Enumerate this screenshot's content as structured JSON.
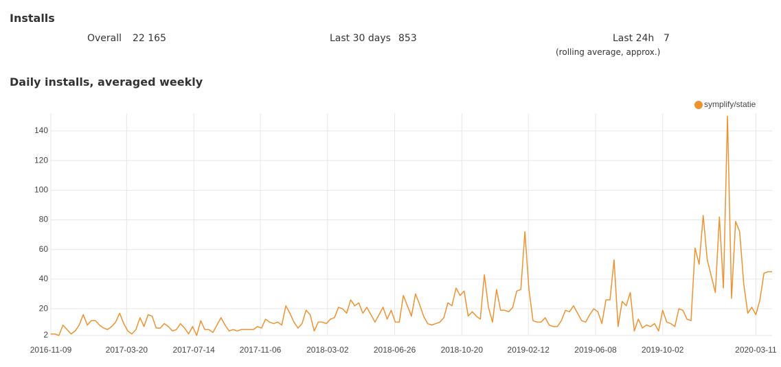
{
  "installs": {
    "title": "Installs",
    "stats": [
      {
        "label": "Overall",
        "value": "22 165"
      },
      {
        "label": "Last 30 days",
        "value": "853"
      },
      {
        "label": "Last 24h",
        "value": "7"
      }
    ],
    "note": "(rolling average, approx.)"
  },
  "chart_data": {
    "type": "line",
    "title": "Daily installs, averaged weekly",
    "x": [
      "2016-11-09",
      "2016-11-16",
      "2016-11-23",
      "2016-11-30",
      "2016-12-07",
      "2016-12-14",
      "2016-12-21",
      "2016-12-28",
      "2017-01-04",
      "2017-01-11",
      "2017-01-18",
      "2017-01-25",
      "2017-02-01",
      "2017-02-08",
      "2017-02-15",
      "2017-02-22",
      "2017-03-01",
      "2017-03-08",
      "2017-03-15",
      "2017-03-22",
      "2017-03-29",
      "2017-04-05",
      "2017-04-12",
      "2017-04-19",
      "2017-04-26",
      "2017-05-03",
      "2017-05-10",
      "2017-05-17",
      "2017-05-24",
      "2017-05-31",
      "2017-06-07",
      "2017-06-14",
      "2017-06-21",
      "2017-06-28",
      "2017-07-05",
      "2017-07-12",
      "2017-07-19",
      "2017-07-26",
      "2017-08-02",
      "2017-08-09",
      "2017-08-16",
      "2017-08-23",
      "2017-08-30",
      "2017-09-06",
      "2017-09-13",
      "2017-09-20",
      "2017-09-27",
      "2017-10-04",
      "2017-10-11",
      "2017-10-18",
      "2017-10-25",
      "2017-11-01",
      "2017-11-08",
      "2017-11-15",
      "2017-11-22",
      "2017-11-29",
      "2017-12-06",
      "2017-12-13",
      "2017-12-20",
      "2017-12-27",
      "2018-01-03",
      "2018-01-10",
      "2018-01-17",
      "2018-01-24",
      "2018-01-31",
      "2018-02-07",
      "2018-02-14",
      "2018-02-21",
      "2018-02-28",
      "2018-03-07",
      "2018-03-14",
      "2018-03-21",
      "2018-03-28",
      "2018-04-04",
      "2018-04-11",
      "2018-04-18",
      "2018-04-25",
      "2018-05-02",
      "2018-05-09",
      "2018-05-16",
      "2018-05-23",
      "2018-05-30",
      "2018-06-06",
      "2018-06-13",
      "2018-06-20",
      "2018-06-27",
      "2018-07-04",
      "2018-07-11",
      "2018-07-18",
      "2018-07-25",
      "2018-08-01",
      "2018-08-08",
      "2018-08-15",
      "2018-08-22",
      "2018-08-29",
      "2018-09-05",
      "2018-09-12",
      "2018-09-19",
      "2018-09-26",
      "2018-10-03",
      "2018-10-10",
      "2018-10-17",
      "2018-10-24",
      "2018-10-31",
      "2018-11-07",
      "2018-11-14",
      "2018-11-21",
      "2018-11-28",
      "2018-12-05",
      "2018-12-12",
      "2018-12-19",
      "2018-12-26",
      "2019-01-02",
      "2019-01-09",
      "2019-01-16",
      "2019-01-23",
      "2019-01-30",
      "2019-02-06",
      "2019-02-13",
      "2019-02-20",
      "2019-02-27",
      "2019-03-06",
      "2019-03-13",
      "2019-03-20",
      "2019-03-27",
      "2019-04-03",
      "2019-04-10",
      "2019-04-17",
      "2019-04-24",
      "2019-05-01",
      "2019-05-08",
      "2019-05-15",
      "2019-05-22",
      "2019-05-29",
      "2019-06-05",
      "2019-06-12",
      "2019-06-19",
      "2019-06-26",
      "2019-07-03",
      "2019-07-10",
      "2019-07-17",
      "2019-07-24",
      "2019-07-31",
      "2019-08-07",
      "2019-08-14",
      "2019-08-21",
      "2019-08-28",
      "2019-09-04",
      "2019-09-11",
      "2019-09-18",
      "2019-09-25",
      "2019-10-02",
      "2019-10-09",
      "2019-10-16",
      "2019-10-23",
      "2019-10-30",
      "2019-11-06",
      "2019-11-13",
      "2019-11-20",
      "2019-11-27",
      "2019-12-04",
      "2019-12-11",
      "2019-12-18",
      "2019-12-25",
      "2020-01-01",
      "2020-01-08",
      "2020-01-15",
      "2020-01-22",
      "2020-01-29",
      "2020-02-05",
      "2020-02-12",
      "2020-02-19",
      "2020-02-26",
      "2020-03-04",
      "2020-03-11",
      "2020-03-18",
      "2020-03-25",
      "2020-04-01",
      "2020-04-08"
    ],
    "series": [
      {
        "name": "symplify/statie",
        "color": "#f0912f",
        "values": [
          3,
          3,
          2,
          9,
          6,
          3,
          5,
          9,
          16,
          9,
          12,
          12,
          9,
          7,
          6,
          8,
          11,
          17,
          10,
          5,
          3,
          6,
          14,
          8,
          16,
          15,
          7,
          7,
          10,
          8,
          5,
          6,
          10,
          7,
          3,
          8,
          2,
          12,
          6,
          6,
          4,
          9,
          14,
          9,
          5,
          6,
          5,
          6,
          6,
          6,
          6,
          8,
          7,
          13,
          11,
          10,
          11,
          9,
          22,
          17,
          11,
          7,
          10,
          19,
          16,
          5,
          11,
          11,
          10,
          13,
          14,
          21,
          20,
          17,
          26,
          22,
          24,
          17,
          21,
          16,
          11,
          16,
          21,
          13,
          19,
          11,
          11,
          29,
          22,
          15,
          30,
          23,
          15,
          10,
          9,
          10,
          11,
          14,
          24,
          22,
          34,
          29,
          32,
          15,
          18,
          15,
          13,
          43,
          21,
          11,
          33,
          19,
          19,
          18,
          21,
          32,
          33,
          72,
          33,
          12,
          11,
          11,
          14,
          9,
          8,
          8,
          12,
          19,
          18,
          22,
          17,
          12,
          11,
          16,
          20,
          18,
          10,
          26,
          26,
          53,
          8,
          25,
          22,
          31,
          5,
          13,
          7,
          9,
          8,
          10,
          5,
          19,
          11,
          10,
          8,
          20,
          19,
          13,
          12,
          61,
          50,
          83,
          53,
          42,
          31,
          82,
          34,
          150,
          27,
          79,
          72,
          37,
          17,
          21,
          16,
          26,
          44,
          45,
          45
        ]
      }
    ],
    "xlim": [
      "2016-11-09",
      "2020-04-08"
    ],
    "xticks": [
      "2016-11-09",
      "2017-03-20",
      "2017-07-14",
      "2017-11-06",
      "2018-03-02",
      "2018-06-26",
      "2018-10-20",
      "2019-02-12",
      "2019-06-08",
      "2019-10-02",
      "2020-03-11"
    ],
    "ylim": [
      2,
      152
    ],
    "yticks": [
      2,
      20,
      40,
      60,
      80,
      100,
      120,
      140
    ],
    "grid": true,
    "legend": "top-right"
  }
}
